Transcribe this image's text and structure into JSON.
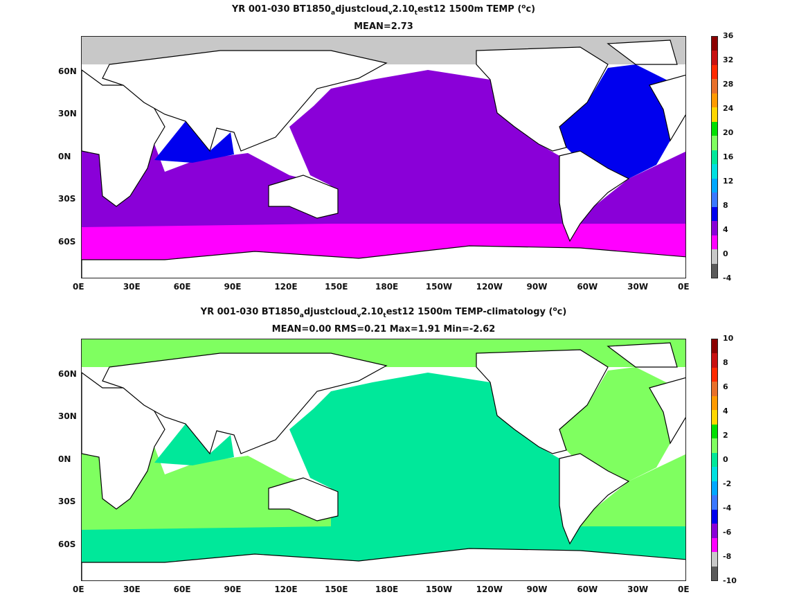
{
  "x_ticks": [
    "0E",
    "30E",
    "60E",
    "90E",
    "120E",
    "150E",
    "180E",
    "150W",
    "120W",
    "90W",
    "60W",
    "30W",
    "0E"
  ],
  "y_ticks": [
    "60N",
    "30N",
    "0N",
    "30S",
    "60S"
  ],
  "panels": [
    {
      "title_parts": [
        "YR 001-030 BT1850",
        "a",
        "djustcloud",
        "v",
        "2.10",
        "t",
        "est12 1500m TEMP (",
        "o",
        "c)"
      ],
      "stats": "MEAN=2.73",
      "colorbar_labels": [
        "36",
        "32",
        "28",
        "24",
        "20",
        "16",
        "12",
        "8",
        "4",
        "0",
        "-4"
      ],
      "colorbar_colors": [
        "#8b0000",
        "#c81010",
        "#ff2a00",
        "#e8702a",
        "#ff9a00",
        "#ffd700",
        "#00e000",
        "#7fff60",
        "#00e89a",
        "#00e0e0",
        "#00a8ff",
        "#3a78ff",
        "#0000ee",
        "#8a00d8",
        "#ff00ff",
        "#c8c8c8",
        "#5a5a5a"
      ],
      "fills": {
        "pacific": "#8a00d8",
        "indian": "#8a00d8",
        "atlantic": "#0000ee",
        "southern": "#ff00ff",
        "indian_north": "#0000ee",
        "med": "#00e0e0",
        "arctic_ice": "#c8c8c8"
      }
    },
    {
      "title_parts": [
        "YR 001-030 BT1850",
        "a",
        "djustcloud",
        "v",
        "2.10",
        "t",
        "est12 1500m TEMP-climatology (",
        "o",
        "c)"
      ],
      "stats": "MEAN=0.00   RMS=0.21   Max=1.91   Min=-2.62",
      "colorbar_labels": [
        "10",
        "8",
        "6",
        "4",
        "2",
        "0",
        "-2",
        "-4",
        "-6",
        "-8",
        "-10"
      ],
      "colorbar_colors": [
        "#8b0000",
        "#c81010",
        "#ff2a00",
        "#e8702a",
        "#ff9a00",
        "#ffd700",
        "#00e000",
        "#7fff60",
        "#00e89a",
        "#00e0e0",
        "#00a8ff",
        "#3a78ff",
        "#0000ee",
        "#8a00d8",
        "#ff00ff",
        "#c8c8c8",
        "#5a5a5a"
      ],
      "fills": {
        "pacific": "#00e89a",
        "indian": "#7fff60",
        "atlantic": "#7fff60",
        "southern": "#00e89a",
        "indian_north": "#00e89a",
        "med": "#7fff60",
        "arctic_ice": "#7fff60"
      }
    }
  ]
}
